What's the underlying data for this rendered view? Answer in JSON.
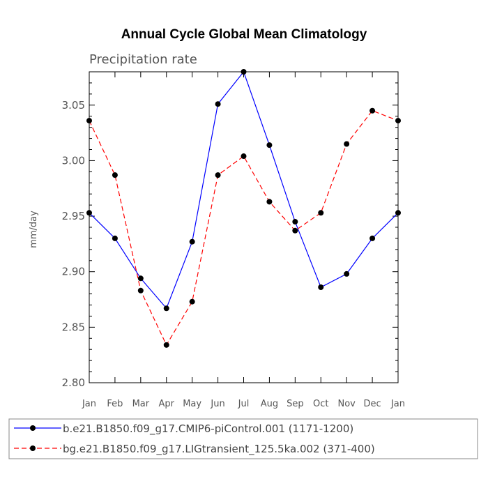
{
  "chart_data": {
    "type": "line",
    "title": "Annual Cycle Global Mean Climatology",
    "subtitle": "Precipitation rate",
    "xlabel": "",
    "ylabel": "mm/day",
    "categories": [
      "Jan",
      "Feb",
      "Mar",
      "Apr",
      "May",
      "Jun",
      "Jul",
      "Aug",
      "Sep",
      "Oct",
      "Nov",
      "Dec",
      "Jan"
    ],
    "ylim": [
      2.8,
      3.08
    ],
    "yticks": [
      2.8,
      2.85,
      2.9,
      2.95,
      3.0,
      3.05
    ],
    "ytick_labels": [
      "2.80",
      "2.85",
      "2.90",
      "2.95",
      "3.00",
      "3.05"
    ],
    "grid": false,
    "legend_position": "bottom",
    "series": [
      {
        "name": "b.e21.B1850.f09_g17.CMIP6-piControl.001 (1171-1200)",
        "color": "#0000ff",
        "line_style": "solid",
        "marker": "circle",
        "values": [
          2.953,
          2.93,
          2.894,
          2.867,
          2.927,
          3.051,
          3.08,
          3.014,
          2.945,
          2.886,
          2.898,
          2.93,
          2.953
        ]
      },
      {
        "name": "bg.e21.B1850.f09_g17.LIGtransient_125.5ka.002 (371-400)",
        "color": "#ff0000",
        "line_style": "dashed",
        "marker": "circle",
        "values": [
          3.036,
          2.987,
          2.883,
          2.834,
          2.873,
          2.987,
          3.004,
          2.963,
          2.937,
          2.953,
          3.015,
          3.045,
          3.036
        ]
      }
    ]
  }
}
